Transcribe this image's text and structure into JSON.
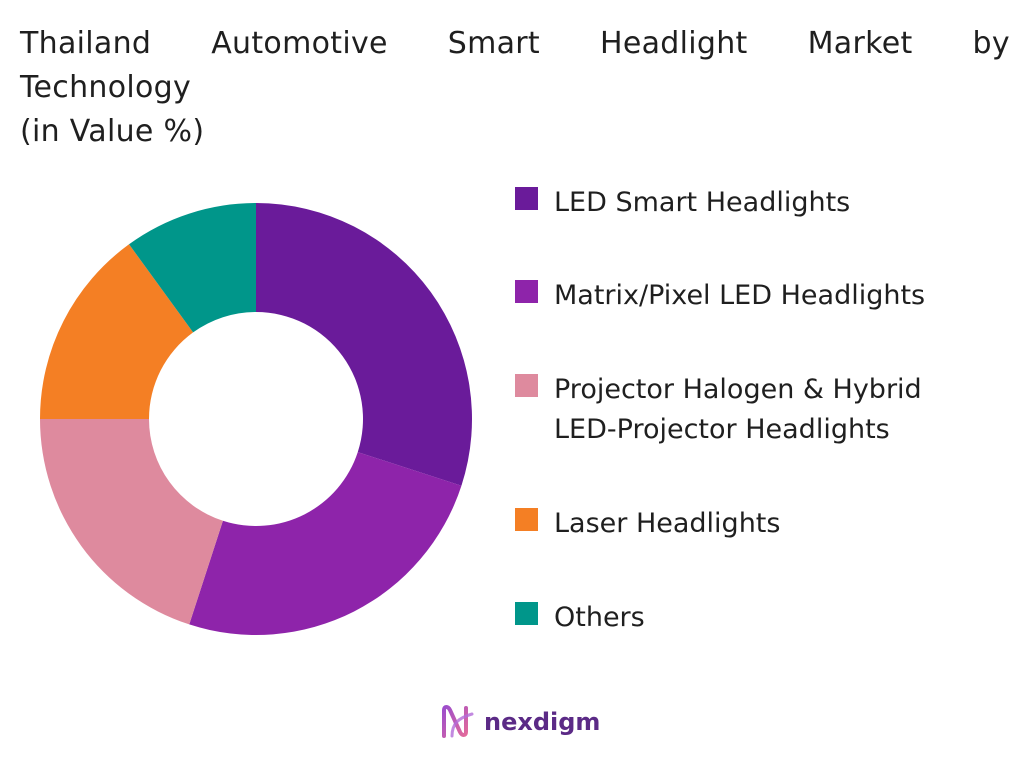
{
  "title": {
    "line1": [
      "Thailand",
      "Automotive",
      "Smart",
      "Headlight",
      "Market",
      "by"
    ],
    "line2": "Technology",
    "line3": "(in Value %)"
  },
  "chart_data": {
    "type": "pie",
    "donut": true,
    "title": "Thailand Automotive Smart Headlight Market by Technology (in Value %)",
    "unit": "%",
    "legend_position": "right",
    "slices": [
      {
        "label": "LED Smart Headlights",
        "value": 30,
        "color": "#6a1b9a"
      },
      {
        "label": "Matrix/Pixel LED Headlights",
        "value": 25,
        "color": "#8e24aa"
      },
      {
        "label": "Projector Halogen & Hybrid LED-Projector Headlights",
        "value": 20,
        "color": "#de8a9e"
      },
      {
        "label": "Laser Headlights",
        "value": 15,
        "color": "#f47f24"
      },
      {
        "label": "Others",
        "value": 10,
        "color": "#00968a"
      }
    ]
  },
  "legend": [
    {
      "lines": [
        "LED Smart Headlights"
      ],
      "color": "#6a1b9a"
    },
    {
      "lines": [
        "Matrix/Pixel LED Headlights"
      ],
      "color": "#8e24aa"
    },
    {
      "lines": [
        "Projector Halogen & Hybrid",
        "LED-Projector Headlights"
      ],
      "color": "#de8a9e"
    },
    {
      "lines": [
        "Laser Headlights"
      ],
      "color": "#f47f24"
    },
    {
      "lines": [
        "Others"
      ],
      "color": "#00968a"
    }
  ],
  "logo": {
    "text": "nexdigm",
    "icon": "nexdigm-logo-icon",
    "color": "#5b2a86"
  }
}
